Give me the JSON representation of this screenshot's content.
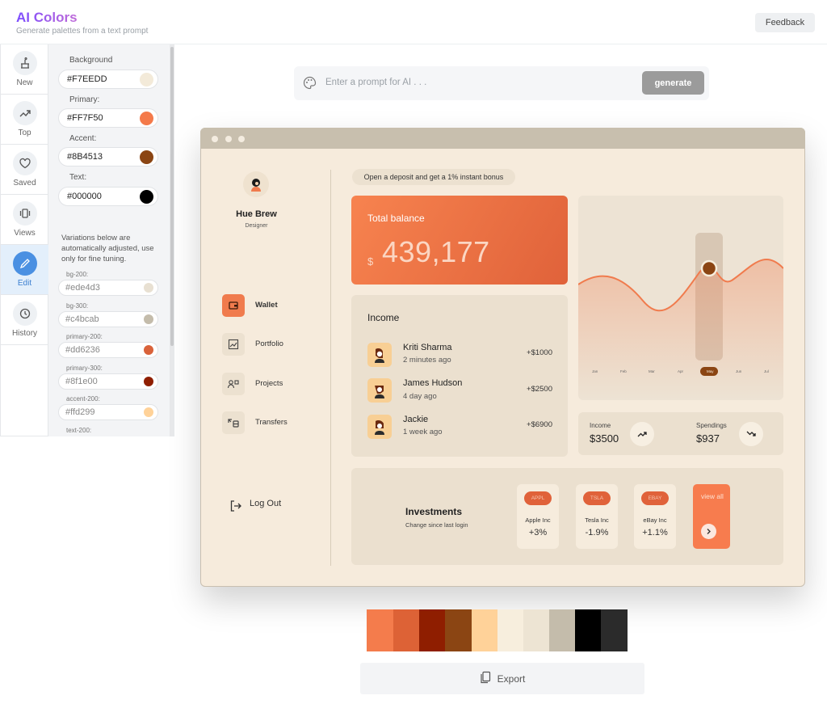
{
  "header": {
    "title": "AI Colors",
    "subtitle": "Generate palettes from a text prompt",
    "feedback_label": "Feedback"
  },
  "nav": {
    "items": [
      {
        "label": "New",
        "icon": "cake-icon"
      },
      {
        "label": "Top",
        "icon": "trending-icon"
      },
      {
        "label": "Saved",
        "icon": "heart-icon"
      },
      {
        "label": "Views",
        "icon": "carousel-icon"
      },
      {
        "label": "Edit",
        "icon": "pencil-icon",
        "active": true
      },
      {
        "label": "History",
        "icon": "history-icon"
      }
    ]
  },
  "colors": {
    "background": {
      "label": "Background",
      "value": "#F7EEDD",
      "swatch": "#f3ead9"
    },
    "primary": {
      "label": "Primary:",
      "value": "#FF7F50",
      "swatch": "#f47a4a"
    },
    "accent": {
      "label": "Accent:",
      "value": "#8B4513",
      "swatch": "#8b4513"
    },
    "text": {
      "label": "Text:",
      "value": "#000000",
      "swatch": "#000000"
    }
  },
  "variations": {
    "note": "Variations below are automatically adjusted, use only for fine tuning.",
    "items": [
      {
        "label": "bg-200:",
        "value": "#ede4d3",
        "swatch": "#e8e0d2"
      },
      {
        "label": "bg-300:",
        "value": "#c4bcab",
        "swatch": "#c4bcab"
      },
      {
        "label": "primary-200:",
        "value": "#dd6236",
        "swatch": "#d9623a"
      },
      {
        "label": "primary-300:",
        "value": "#8f1e00",
        "swatch": "#8f1e00"
      },
      {
        "label": "accent-200:",
        "value": "#ffd299",
        "swatch": "#ffd299"
      },
      {
        "label": "text-200:",
        "value": "",
        "swatch": "#333333"
      }
    ]
  },
  "prompt": {
    "placeholder": "Enter a prompt for AI . . .",
    "button": "generate"
  },
  "mock": {
    "user": {
      "name": "Hue Brew",
      "role": "Designer"
    },
    "menu": [
      {
        "label": "Wallet",
        "icon": "wallet-icon",
        "active": true
      },
      {
        "label": "Portfolio",
        "icon": "chart-icon"
      },
      {
        "label": "Projects",
        "icon": "projects-icon"
      },
      {
        "label": "Transfers",
        "icon": "transfer-icon"
      }
    ],
    "logout": "Log Out",
    "promo": "Open a deposit and get a 1% instant bonus",
    "balance": {
      "label": "Total balance",
      "currency": "$",
      "value": "439,177"
    },
    "income": {
      "title": "Income",
      "transactions": [
        {
          "name": "Kriti Sharma",
          "time": "2 minutes ago",
          "amount": "+$1000"
        },
        {
          "name": "James Hudson",
          "time": "4 day ago",
          "amount": "+$2500"
        },
        {
          "name": "Jackie",
          "time": "1 week ago",
          "amount": "+$6900"
        }
      ]
    },
    "chart_months": [
      "Jan",
      "Feb",
      "Mar",
      "Apr",
      "May",
      "Jun",
      "Jul"
    ],
    "chart_active": "May",
    "stats": {
      "income_label": "Income",
      "income_value": "$3500",
      "spend_label": "Spendings",
      "spend_value": "$937"
    },
    "investments": {
      "title": "Investments",
      "subtitle": "Change since last login",
      "stocks": [
        {
          "tag": "APPL",
          "name": "Apple Inc",
          "change": "+3%"
        },
        {
          "tag": "TSLA",
          "name": "Tesla Inc",
          "change": "-1.9%"
        },
        {
          "tag": "EBAY",
          "name": "eBay Inc",
          "change": "+1.1%"
        }
      ],
      "view_all": "view all"
    }
  },
  "palette": [
    "#f47c4c",
    "#dd6236",
    "#8f1e00",
    "#8b4513",
    "#ffd299",
    "#f7eedd",
    "#ede4d3",
    "#c4bcab",
    "#000000",
    "#2b2b2b"
  ],
  "export_label": "Export"
}
